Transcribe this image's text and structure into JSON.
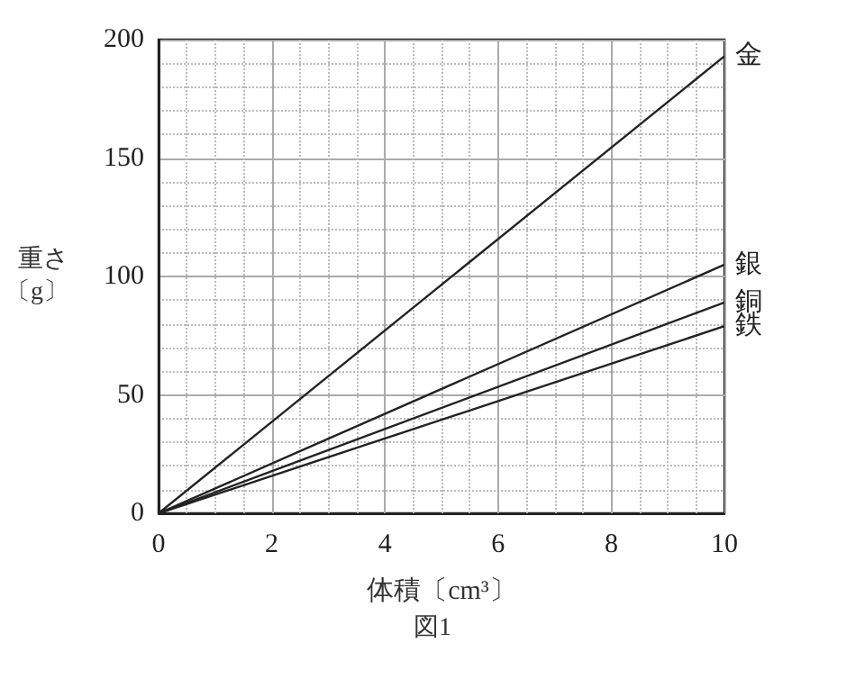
{
  "chart_data": {
    "type": "line",
    "xlabel": "体積〔cm³〕",
    "ylabel": "重さ〔g〕",
    "annotations": [
      "図1"
    ],
    "x": [
      0,
      10
    ],
    "xlim": [
      0,
      10
    ],
    "xticks": [
      0,
      2,
      4,
      6,
      8,
      10
    ],
    "ylim": [
      0,
      200
    ],
    "yticks": [
      0,
      50,
      100,
      150,
      200
    ],
    "grid": true,
    "marker": "none",
    "line_style": "solid",
    "series": [
      {
        "name": "金",
        "color": "#222222",
        "values": [
          0,
          193
        ]
      },
      {
        "name": "銀",
        "color": "#222222",
        "values": [
          0,
          105
        ]
      },
      {
        "name": "銅",
        "color": "#222222",
        "values": [
          0,
          89
        ]
      },
      {
        "name": "鉄",
        "color": "#222222",
        "values": [
          0,
          79
        ]
      }
    ]
  }
}
